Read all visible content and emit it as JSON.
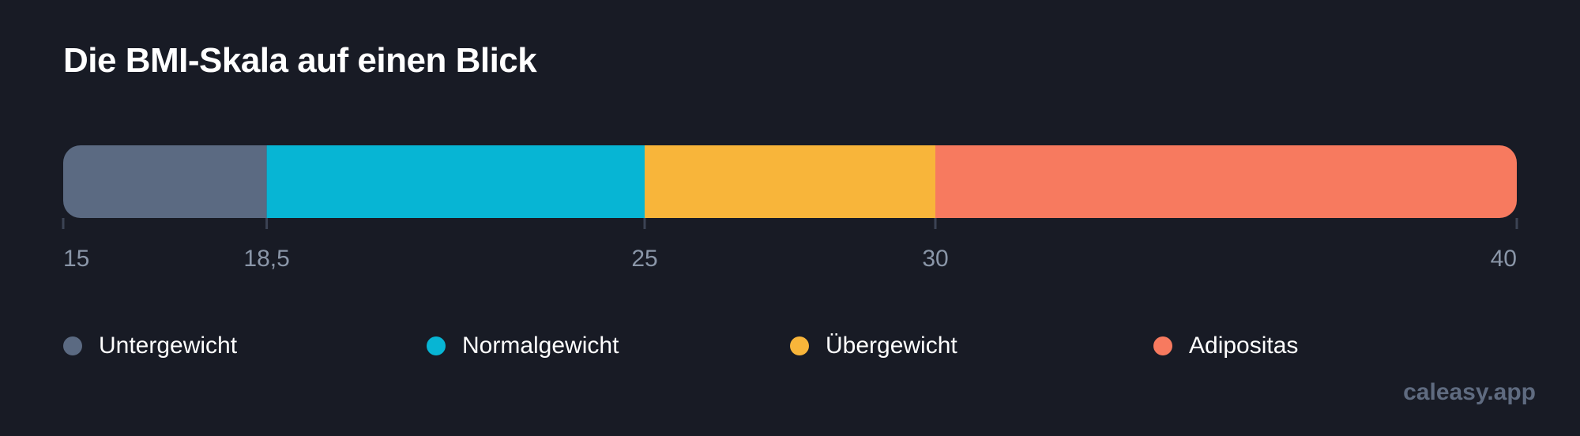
{
  "title": "Die BMI-Skala auf einen Blick",
  "watermark": "caleasy.app",
  "chart_data": {
    "type": "bar",
    "orientation": "horizontal-stacked-scale",
    "title": "Die BMI-Skala auf einen Blick",
    "xlim": [
      15,
      40
    ],
    "ticks": [
      {
        "value": 15,
        "label": "15"
      },
      {
        "value": 18.5,
        "label": "18,5"
      },
      {
        "value": 25,
        "label": "25"
      },
      {
        "value": 30,
        "label": "30"
      },
      {
        "value": 40,
        "label": "40"
      }
    ],
    "segments": [
      {
        "name": "Untergewicht",
        "from": 15,
        "to": 18.5,
        "color": "#5b6a82"
      },
      {
        "name": "Normalgewicht",
        "from": 18.5,
        "to": 25,
        "color": "#07b5d4"
      },
      {
        "name": "Übergewicht",
        "from": 25,
        "to": 30,
        "color": "#f8b53a"
      },
      {
        "name": "Adipositas",
        "from": 30,
        "to": 40,
        "color": "#f77a5f"
      }
    ],
    "legend_placement": "bottom",
    "grid": false
  },
  "legend": [
    {
      "label": "Untergewicht",
      "color": "#5b6a82"
    },
    {
      "label": "Normalgewicht",
      "color": "#07b5d4"
    },
    {
      "label": "Übergewicht",
      "color": "#f8b53a"
    },
    {
      "label": "Adipositas",
      "color": "#f77a5f"
    }
  ]
}
